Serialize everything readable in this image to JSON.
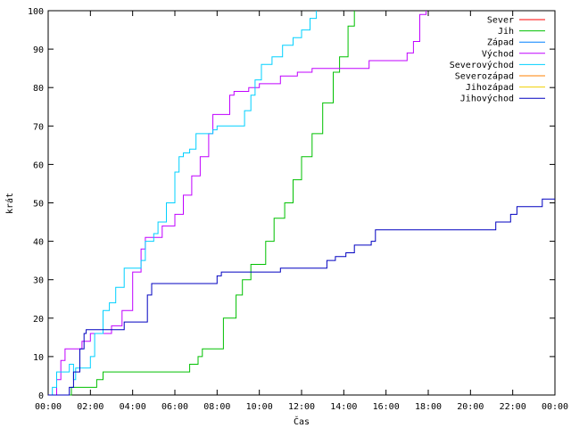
{
  "chart_data": {
    "type": "line",
    "step": true,
    "xlabel": "Čas",
    "ylabel": "krát",
    "xlim": [
      0,
      24
    ],
    "ylim": [
      0,
      100
    ],
    "x_ticks": [
      0,
      2,
      4,
      6,
      8,
      10,
      12,
      14,
      16,
      18,
      20,
      22,
      24
    ],
    "x_tick_labels": [
      "00:00",
      "02:00",
      "04:00",
      "06:00",
      "08:00",
      "10:00",
      "12:00",
      "14:00",
      "16:00",
      "18:00",
      "20:00",
      "22:00",
      "00:00"
    ],
    "y_ticks": [
      0,
      10,
      20,
      30,
      40,
      50,
      60,
      70,
      80,
      90,
      100
    ],
    "grid": false,
    "legend_position": "top-right",
    "series": [
      {
        "name": "Sever",
        "color": "#ff0000",
        "points": []
      },
      {
        "name": "Jih",
        "color": "#00c000",
        "points": [
          [
            0,
            0
          ],
          [
            1.1,
            0
          ],
          [
            1.1,
            2
          ],
          [
            2.3,
            2
          ],
          [
            2.3,
            4
          ],
          [
            2.6,
            4
          ],
          [
            2.6,
            6
          ],
          [
            6.7,
            6
          ],
          [
            6.7,
            8
          ],
          [
            7.1,
            8
          ],
          [
            7.1,
            10
          ],
          [
            7.3,
            10
          ],
          [
            7.3,
            12
          ],
          [
            8.1,
            12
          ],
          [
            8.3,
            20
          ],
          [
            8.9,
            26
          ],
          [
            9.2,
            30
          ],
          [
            9.6,
            34
          ],
          [
            10.0,
            34
          ],
          [
            10.3,
            40
          ],
          [
            10.7,
            46
          ],
          [
            11.2,
            50
          ],
          [
            11.6,
            56
          ],
          [
            12.0,
            62
          ],
          [
            12.5,
            68
          ],
          [
            13.0,
            76
          ],
          [
            13.5,
            84
          ],
          [
            13.8,
            88
          ],
          [
            14.2,
            96
          ],
          [
            14.5,
            100
          ]
        ]
      },
      {
        "name": "Západ",
        "color": "#0080ff",
        "points": []
      },
      {
        "name": "Východ",
        "color": "#c000ff",
        "points": [
          [
            0,
            0
          ],
          [
            0.4,
            0
          ],
          [
            0.4,
            4
          ],
          [
            0.6,
            4
          ],
          [
            0.6,
            9
          ],
          [
            0.8,
            12
          ],
          [
            1.3,
            12
          ],
          [
            1.6,
            14
          ],
          [
            2.0,
            16
          ],
          [
            2.6,
            16
          ],
          [
            3.0,
            18
          ],
          [
            3.5,
            22
          ],
          [
            4.0,
            32
          ],
          [
            4.4,
            38
          ],
          [
            4.6,
            41
          ],
          [
            5.1,
            41
          ],
          [
            5.4,
            44
          ],
          [
            6.0,
            47
          ],
          [
            6.4,
            52
          ],
          [
            6.8,
            57
          ],
          [
            7.2,
            62
          ],
          [
            7.6,
            68
          ],
          [
            7.8,
            73
          ],
          [
            8.2,
            73
          ],
          [
            8.6,
            78
          ],
          [
            8.8,
            79
          ],
          [
            9.5,
            80
          ],
          [
            10.0,
            81
          ],
          [
            10.8,
            81
          ],
          [
            11.0,
            83
          ],
          [
            11.8,
            84
          ],
          [
            12.5,
            85
          ],
          [
            15.0,
            85
          ],
          [
            15.2,
            87
          ],
          [
            16.8,
            87
          ],
          [
            17.0,
            89
          ],
          [
            17.3,
            92
          ],
          [
            17.6,
            99
          ],
          [
            17.9,
            100
          ]
        ]
      },
      {
        "name": "Severovýchod",
        "color": "#00d0ff",
        "points": [
          [
            0,
            0
          ],
          [
            0.2,
            0
          ],
          [
            0.2,
            2
          ],
          [
            0.4,
            6
          ],
          [
            0.8,
            6
          ],
          [
            1.0,
            8
          ],
          [
            1.2,
            4
          ],
          [
            1.3,
            7
          ],
          [
            1.6,
            7
          ],
          [
            2.0,
            10
          ],
          [
            2.2,
            16
          ],
          [
            2.6,
            22
          ],
          [
            2.9,
            24
          ],
          [
            3.2,
            28
          ],
          [
            3.6,
            33
          ],
          [
            4.0,
            33
          ],
          [
            4.4,
            35
          ],
          [
            4.6,
            40
          ],
          [
            5.0,
            42
          ],
          [
            5.2,
            45
          ],
          [
            5.6,
            50
          ],
          [
            6.0,
            58
          ],
          [
            6.2,
            62
          ],
          [
            6.4,
            63
          ],
          [
            6.7,
            64
          ],
          [
            7.0,
            68
          ],
          [
            7.5,
            68
          ],
          [
            7.8,
            69
          ],
          [
            8.0,
            70
          ],
          [
            9.0,
            70
          ],
          [
            9.3,
            74
          ],
          [
            9.6,
            78
          ],
          [
            9.8,
            82
          ],
          [
            10.1,
            86
          ],
          [
            10.6,
            88
          ],
          [
            11.1,
            91
          ],
          [
            11.6,
            93
          ],
          [
            12.0,
            95
          ],
          [
            12.4,
            98
          ],
          [
            12.7,
            100
          ]
        ]
      },
      {
        "name": "Severozápad",
        "color": "#ff8000",
        "points": []
      },
      {
        "name": "Jihozápad",
        "color": "#f0d000",
        "points": []
      },
      {
        "name": "Jihovýchod",
        "color": "#0000c0",
        "points": [
          [
            0,
            0
          ],
          [
            1.0,
            0
          ],
          [
            1.0,
            2
          ],
          [
            1.2,
            6
          ],
          [
            1.5,
            12
          ],
          [
            1.7,
            16
          ],
          [
            1.8,
            17
          ],
          [
            3.5,
            17
          ],
          [
            3.6,
            19
          ],
          [
            4.6,
            19
          ],
          [
            4.7,
            26
          ],
          [
            4.9,
            29
          ],
          [
            7.8,
            29
          ],
          [
            8.0,
            31
          ],
          [
            8.2,
            32
          ],
          [
            10.9,
            32
          ],
          [
            11.0,
            33
          ],
          [
            13.0,
            33
          ],
          [
            13.2,
            35
          ],
          [
            13.6,
            36
          ],
          [
            14.1,
            37
          ],
          [
            14.5,
            39
          ],
          [
            15.3,
            40
          ],
          [
            15.5,
            43
          ],
          [
            21.0,
            43
          ],
          [
            21.2,
            45
          ],
          [
            21.9,
            47
          ],
          [
            22.2,
            49
          ],
          [
            23.2,
            49
          ],
          [
            23.4,
            51
          ],
          [
            24.0,
            51
          ]
        ]
      }
    ]
  }
}
